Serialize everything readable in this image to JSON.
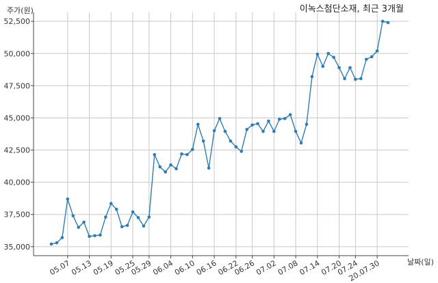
{
  "chart_data": {
    "type": "line",
    "title": "이녹스첨단소재, 최근 3개월",
    "xlabel": "날짜(일)",
    "ylabel": "주가(원)",
    "ylim": [
      34300,
      53200
    ],
    "yticks": [
      "35,000",
      "37,500",
      "40,000",
      "42,500",
      "45,000",
      "47,500",
      "50,000",
      "52,500"
    ],
    "ytick_values": [
      35000,
      37500,
      40000,
      42500,
      45000,
      47500,
      50000,
      52500
    ],
    "xtick_labels": [
      "05.07",
      "05.13",
      "05.19",
      "05.25",
      "05.29",
      "06.04",
      "06.10",
      "06.16",
      "06.22",
      "06.26",
      "07.02",
      "07.08",
      "07.14",
      "07.20",
      "07.24",
      "20.07.30"
    ],
    "xtick_index": [
      3,
      7,
      11,
      15,
      18,
      22,
      26,
      30,
      34,
      37,
      41,
      45,
      49,
      53,
      56,
      60
    ],
    "grid": true,
    "color": "#2e7cb1",
    "series": [
      {
        "values": [
          35200,
          35300,
          35700,
          38700,
          37400,
          36500,
          36900,
          35800,
          35850,
          35900,
          37300,
          38350,
          37900,
          36550,
          36650,
          37700,
          37250,
          36600,
          37300,
          42150,
          41200,
          40800,
          41350,
          41050,
          42200,
          42150,
          42550,
          44500,
          43200,
          41100,
          44000,
          44950,
          43950,
          43200,
          42750,
          42400,
          44100,
          44450,
          44550,
          43950,
          44750,
          43950,
          44900,
          44950,
          45250,
          43950,
          43050,
          44500,
          48200,
          49950,
          49000,
          50000,
          49700,
          48900,
          48050,
          48900,
          48000,
          48050,
          49550,
          49750,
          50200,
          52500,
          52400
        ]
      }
    ]
  }
}
